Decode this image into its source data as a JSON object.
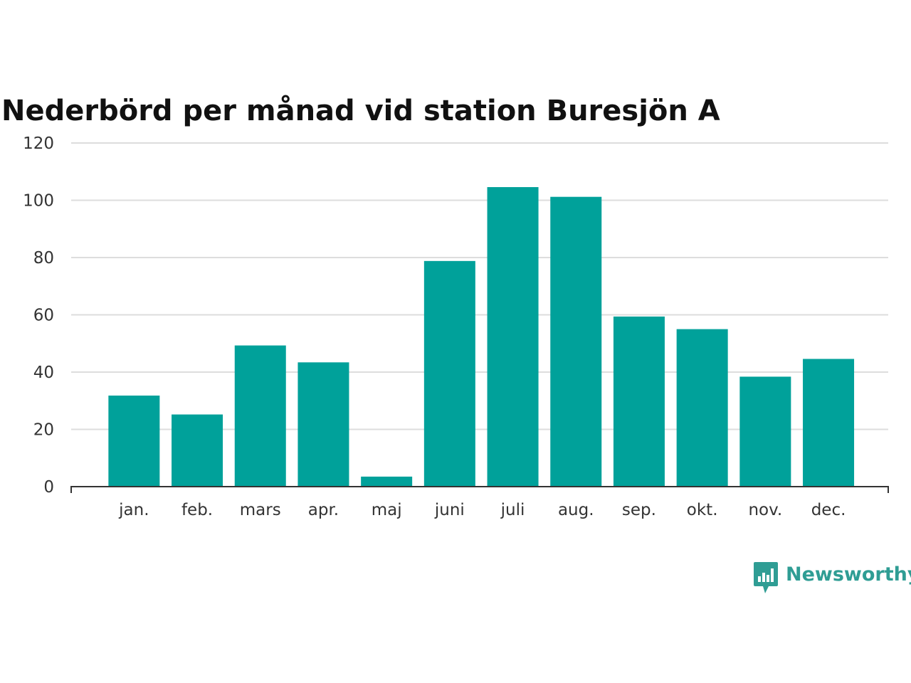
{
  "chart_data": {
    "type": "bar",
    "title": "Nederbörd per månad vid station Buresjön A",
    "xlabel": "",
    "ylabel": "",
    "categories": [
      "jan.",
      "feb.",
      "mars",
      "apr.",
      "maj",
      "juni",
      "juli",
      "aug.",
      "sep.",
      "okt.",
      "nov.",
      "dec."
    ],
    "values": [
      31.8,
      25.2,
      49.3,
      43.4,
      3.5,
      78.8,
      104.6,
      101.2,
      59.4,
      55.0,
      38.4,
      44.6
    ],
    "yticks": [
      0,
      20,
      40,
      60,
      80,
      100,
      120
    ],
    "ylim": [
      0,
      120
    ],
    "grid": true,
    "legend": "none",
    "bar_color": "#00a19a"
  },
  "brand": {
    "name": "Newsworthy",
    "color": "#2f9d94",
    "icon": "newsworthy-logo-icon"
  }
}
